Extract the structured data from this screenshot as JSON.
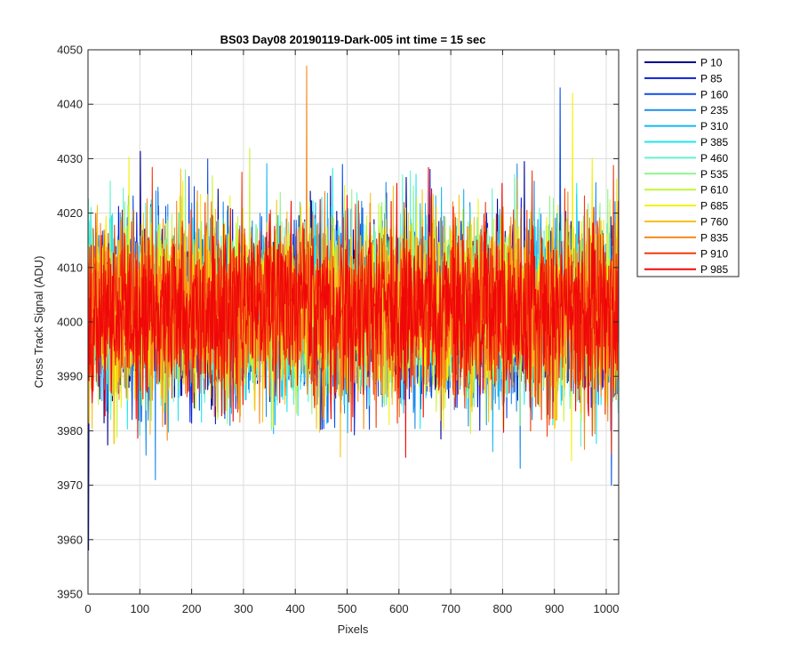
{
  "chart_data": {
    "type": "line",
    "title": "BS03 Day08 20190119-Dark-005 int time = 15 sec",
    "xlabel": "Pixels",
    "ylabel": "Cross Track Signal (ADU)",
    "xlim": [
      0,
      1024
    ],
    "ylim": [
      3950,
      4050
    ],
    "xticks": [
      0,
      100,
      200,
      300,
      400,
      500,
      600,
      700,
      800,
      900,
      1000
    ],
    "yticks": [
      3950,
      3960,
      3970,
      3980,
      3990,
      4000,
      4010,
      4020,
      4030,
      4040,
      4050
    ],
    "grid": true,
    "legend_position": "outside-top-right",
    "signal_summary": {
      "mean_adu": 4002,
      "typical_range_adu": [
        3985,
        4020
      ],
      "points_per_series": 1024
    },
    "notable_points": [
      {
        "series": "P 10",
        "x": 1,
        "y": 3958
      },
      {
        "series": "P 835",
        "x": 422,
        "y": 4047
      },
      {
        "series": "P 160",
        "x": 911,
        "y": 4043
      },
      {
        "series": "P 685",
        "x": 935,
        "y": 4042
      },
      {
        "series": "P 235",
        "x": 130,
        "y": 3971
      },
      {
        "series": "P 160",
        "x": 1010,
        "y": 3970
      }
    ],
    "series": [
      {
        "name": "P 10",
        "color": "#00008f"
      },
      {
        "name": "P 85",
        "color": "#0a1fd6"
      },
      {
        "name": "P 160",
        "color": "#0a4fe6"
      },
      {
        "name": "P 235",
        "color": "#1d8bec"
      },
      {
        "name": "P 310",
        "color": "#17b8ef"
      },
      {
        "name": "P 385",
        "color": "#22e6ef"
      },
      {
        "name": "P 460",
        "color": "#66f2cf"
      },
      {
        "name": "P 535",
        "color": "#8ef58e"
      },
      {
        "name": "P 610",
        "color": "#c6f536"
      },
      {
        "name": "P 685",
        "color": "#f2f20f"
      },
      {
        "name": "P 760",
        "color": "#f7c21b"
      },
      {
        "name": "P 835",
        "color": "#f7891b"
      },
      {
        "name": "P 910",
        "color": "#f23a0f"
      },
      {
        "name": "P 985",
        "color": "#f00808"
      }
    ]
  }
}
